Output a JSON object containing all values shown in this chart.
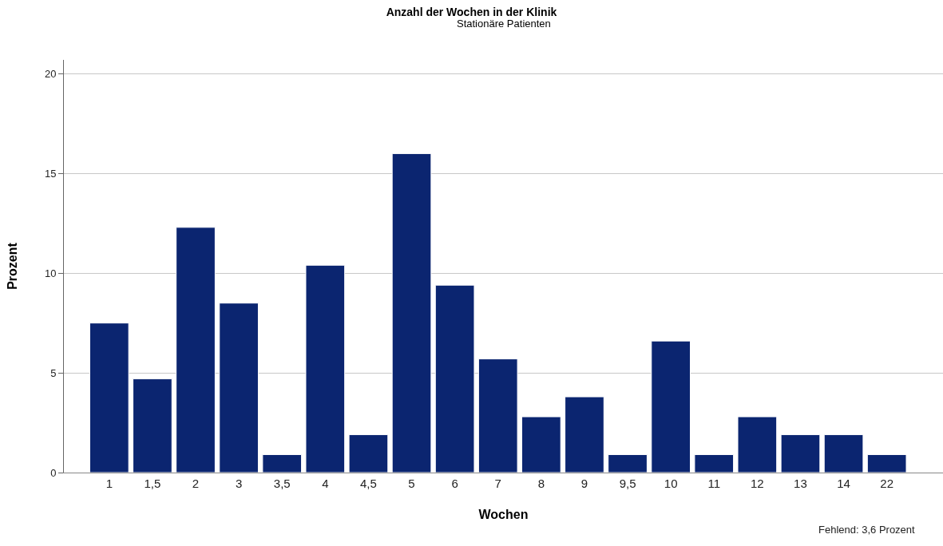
{
  "chart_data": {
    "type": "bar",
    "title": "Anzahl der Wochen in der Klinik",
    "subtitle": "Stationäre Patienten",
    "xlabel": "Wochen",
    "ylabel": "Prozent",
    "categories": [
      "1",
      "1,5",
      "2",
      "3",
      "3,5",
      "4",
      "4,5",
      "5",
      "6",
      "7",
      "8",
      "9",
      "9,5",
      "10",
      "11",
      "12",
      "13",
      "14",
      "22"
    ],
    "values": [
      7.5,
      4.7,
      12.3,
      8.5,
      0.9,
      10.4,
      1.9,
      16.0,
      9.4,
      5.7,
      2.8,
      3.8,
      0.9,
      6.6,
      0.9,
      2.8,
      1.9,
      1.9,
      0.9
    ],
    "color": "#0b2570",
    "ylim": [
      0,
      20.7
    ],
    "yticks": [
      0,
      5,
      10,
      15,
      20
    ],
    "grid": "y",
    "legend": false,
    "annotations": [
      "Fehlend: 3,6 Prozent"
    ]
  }
}
